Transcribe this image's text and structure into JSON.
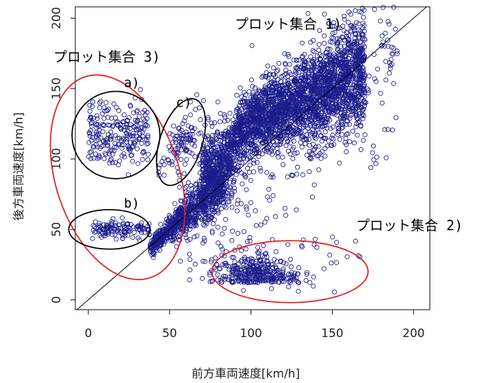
{
  "chart_data": {
    "type": "scatter",
    "xlabel": "前方車両速度[km/h]",
    "ylabel": "後方車両速度[km/h]",
    "xlim": [
      -8,
      210
    ],
    "ylim": [
      -7,
      208
    ],
    "x_ticks": [
      "0",
      "50",
      "100",
      "150",
      "200"
    ],
    "y_ticks": [
      "0",
      "50",
      "100",
      "150",
      "200"
    ],
    "x_tick_values": [
      0,
      50,
      100,
      150,
      200
    ],
    "y_tick_values": [
      0,
      50,
      100,
      150,
      200
    ],
    "grid": false,
    "marker": "open-circle",
    "marker_color": "#1c1c8c",
    "reference_line": {
      "type": "y=x",
      "color": "#000000"
    },
    "annotations": {
      "set1": "プロット集合 1)",
      "set2": "プロット集合 2)",
      "set3": "プロット集合 3)",
      "a": "a)",
      "b": "b)",
      "c": "c)"
    },
    "highlight_ellipses": [
      {
        "label": "set3",
        "color": "#e02020",
        "cx": 18,
        "cy": 87,
        "rx": 38,
        "ry": 75,
        "rotate_deg": -18
      },
      {
        "label": "set2",
        "color": "#e02020",
        "cx": 124,
        "cy": 20,
        "rx": 48,
        "ry": 22,
        "rotate_deg": 0
      },
      {
        "label": "a",
        "color": "#000000",
        "cx": 17,
        "cy": 117,
        "rx": 27,
        "ry": 31,
        "rotate_deg": 0
      },
      {
        "label": "b",
        "color": "#000000",
        "cx": 13,
        "cy": 50,
        "rx": 25,
        "ry": 14,
        "rotate_deg": 0
      },
      {
        "label": "c",
        "color": "#000000",
        "cx": 57,
        "cy": 112,
        "rx": 13,
        "ry": 32,
        "rotate_deg": 18
      }
    ],
    "clusters": [
      {
        "name": "main-diagonal",
        "description_points": "dense band along y≈x from (40,40) to (170,170)"
      },
      {
        "name": "a",
        "x_range": [
          0,
          37
        ],
        "y_range": [
          88,
          146
        ]
      },
      {
        "name": "b",
        "x_range": [
          1,
          38
        ],
        "y_range": [
          43,
          57
        ]
      },
      {
        "name": "c",
        "x_range": [
          42,
          70
        ],
        "y_range": [
          82,
          140
        ]
      },
      {
        "name": "set2",
        "x_range": [
          76,
          170
        ],
        "y_range": [
          0,
          46
        ]
      }
    ]
  }
}
